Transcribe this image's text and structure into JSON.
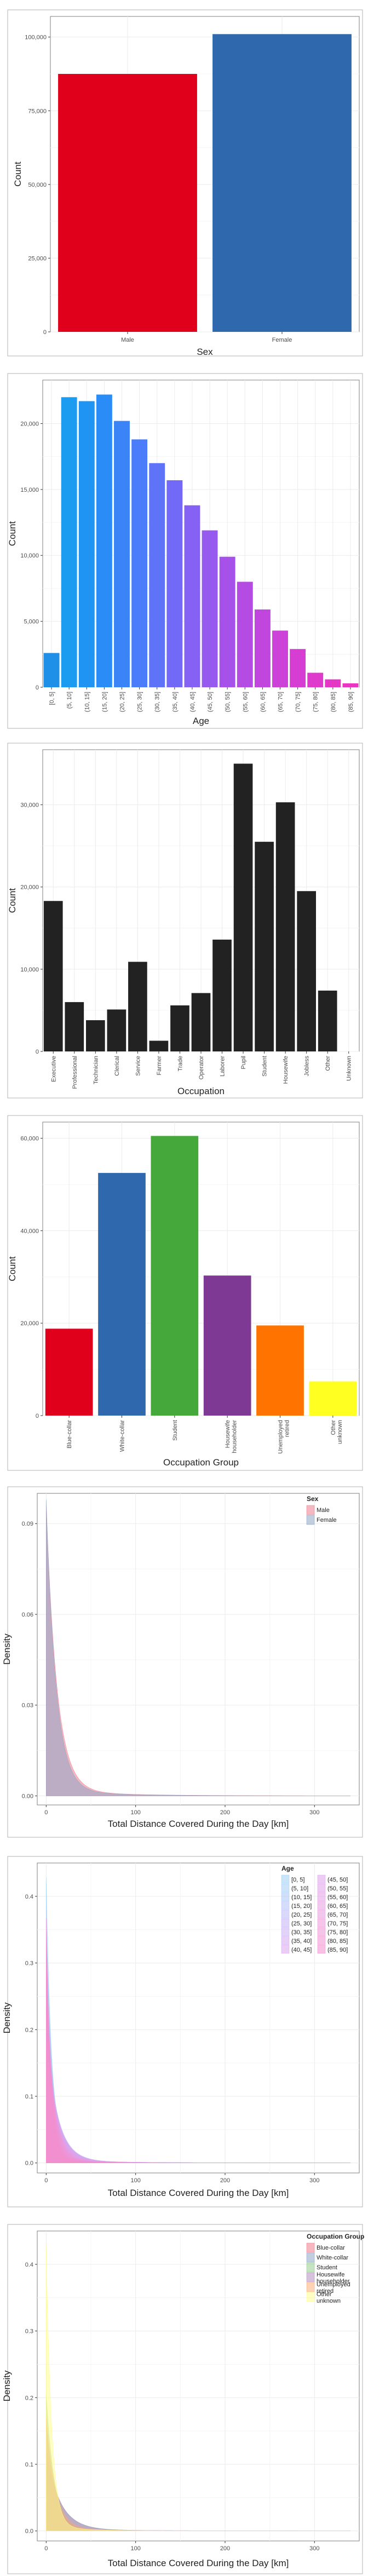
{
  "chart_data": [
    {
      "type": "bar",
      "xlabel": "Sex",
      "ylabel": "Count",
      "categories": [
        "Male",
        "Female"
      ],
      "values": [
        87500,
        101000
      ],
      "colors": [
        "#e0001b",
        "#2f68ad"
      ],
      "ylim": [
        0,
        107000
      ],
      "yticks": [
        0,
        25000,
        50000,
        75000,
        100000
      ],
      "ytick_labels": [
        "0",
        "25,000",
        "50,000",
        "75,000",
        "100,000"
      ],
      "xtick_rotation": 0,
      "grid": true
    },
    {
      "type": "bar",
      "xlabel": "Age",
      "ylabel": "Count",
      "categories": [
        "[0, 5]",
        "(5, 10]",
        "(10, 15]",
        "(15, 20]",
        "(20, 25]",
        "(25, 30]",
        "(30, 35]",
        "(35, 40]",
        "(40, 45]",
        "(45, 50]",
        "(50, 55]",
        "(55, 60]",
        "(60, 65]",
        "(65, 70]",
        "(70, 75]",
        "(75, 80]",
        "(80, 85]",
        "(85, 90]"
      ],
      "values": [
        2600,
        22000,
        21700,
        22200,
        20200,
        18800,
        17000,
        15700,
        13800,
        11900,
        9900,
        8000,
        5900,
        4300,
        2900,
        1100,
        600,
        300
      ],
      "colors": [
        "#1e90e8",
        "#1b9cf0",
        "#1f94f3",
        "#2a8cf6",
        "#3a84f8",
        "#4b7cf9",
        "#5f73f8",
        "#7269f6",
        "#8562f3",
        "#965aef",
        "#a652ea",
        "#b44ce4",
        "#c146de",
        "#cc41d8",
        "#d63dd2",
        "#de3acc",
        "#e537c6",
        "#ea35c0"
      ],
      "ylim": [
        0,
        23300
      ],
      "yticks": [
        0,
        5000,
        10000,
        15000,
        20000
      ],
      "ytick_labels": [
        "0",
        "5,000",
        "10,000",
        "15,000",
        "20,000"
      ],
      "xtick_rotation": -90,
      "grid": true
    },
    {
      "type": "bar",
      "xlabel": "Occupation",
      "ylabel": "Count",
      "categories": [
        "Executive",
        "Professional",
        "Technician",
        "Clerical",
        "Service",
        "Farmer",
        "Trade",
        "Operator",
        "Laborer",
        "Pupil",
        "Student",
        "Housewife",
        "Jobless",
        "Other",
        "Unknown"
      ],
      "values": [
        18300,
        6000,
        3800,
        5100,
        10900,
        1300,
        5600,
        7100,
        13600,
        35000,
        25500,
        30300,
        19500,
        7400,
        0
      ],
      "colors": [
        "#222222"
      ],
      "ylim": [
        0,
        36700
      ],
      "yticks": [
        0,
        10000,
        20000,
        30000
      ],
      "ytick_labels": [
        "0",
        "10,000",
        "20,000",
        "30,000"
      ],
      "xtick_rotation": -90,
      "grid": true
    },
    {
      "type": "bar",
      "xlabel": "Occupation Group",
      "ylabel": "Count",
      "categories": [
        "Blue-collar",
        "White-collar",
        "Student",
        "Housewife\nhouseholder",
        "Unemployed\nretired",
        "Other\nunknown"
      ],
      "values": [
        18800,
        52500,
        60500,
        30300,
        19500,
        7400
      ],
      "colors": [
        "#e0001b",
        "#2f68ad",
        "#44a83a",
        "#7e3994",
        "#ff7300",
        "#ffff21"
      ],
      "ylim": [
        0,
        63500
      ],
      "yticks": [
        0,
        20000,
        40000,
        60000
      ],
      "ytick_labels": [
        "0",
        "20,000",
        "40,000",
        "60,000"
      ],
      "xtick_rotation": -90,
      "grid": true
    },
    {
      "type": "area",
      "xlabel": "Total Distance Covered During the Day [km]",
      "ylabel": "Density",
      "xlim": [
        -10,
        350
      ],
      "ylim": [
        -0.003,
        0.1
      ],
      "xticks": [
        0,
        100,
        200,
        300
      ],
      "xtick_labels": [
        "0",
        "100",
        "200",
        "300"
      ],
      "yticks": [
        0,
        0.03,
        0.06,
        0.09
      ],
      "ytick_labels": [
        "0.00",
        "0.03",
        "0.06",
        "0.09"
      ],
      "legend_title": "Sex",
      "legend_position": "top-right",
      "legend_columns": 1,
      "series": [
        {
          "name": "Male",
          "color": "#f07b8c",
          "peak": 0.094,
          "decay": 12
        },
        {
          "name": "Female",
          "color": "#8ca6c6",
          "peak": 0.096,
          "decay": 11
        }
      ],
      "grid": true
    },
    {
      "type": "area",
      "xlabel": "Total Distance Covered During the Day [km]",
      "ylabel": "Density",
      "xlim": [
        -10,
        350
      ],
      "ylim": [
        -0.015,
        0.45
      ],
      "xticks": [
        0,
        100,
        200,
        300
      ],
      "xtick_labels": [
        "0",
        "100",
        "200",
        "300"
      ],
      "yticks": [
        0,
        0.1,
        0.2,
        0.3,
        0.4
      ],
      "ytick_labels": [
        "0.0",
        "0.1",
        "0.2",
        "0.3",
        "0.4"
      ],
      "legend_title": "Age",
      "legend_position": "top-right",
      "legend_columns": 2,
      "series": [
        {
          "name": "[0, 5]",
          "color": "#9fd0f3",
          "peak": 0.42,
          "decay": 6
        },
        {
          "name": "(5, 10]",
          "color": "#a2cdf6",
          "peak": 0.36,
          "decay": 7
        },
        {
          "name": "(10, 15]",
          "color": "#aac6f8",
          "peak": 0.3,
          "decay": 8
        },
        {
          "name": "(15, 20]",
          "color": "#b3c0f9",
          "peak": 0.24,
          "decay": 10
        },
        {
          "name": "(20, 25]",
          "color": "#bcb9f9",
          "peak": 0.2,
          "decay": 12
        },
        {
          "name": "(25, 30]",
          "color": "#c4b3f8",
          "peak": 0.18,
          "decay": 13
        },
        {
          "name": "(30, 35]",
          "color": "#cbaef6",
          "peak": 0.17,
          "decay": 13
        },
        {
          "name": "(35, 40]",
          "color": "#d1aaf3",
          "peak": 0.17,
          "decay": 13
        },
        {
          "name": "(40, 45]",
          "color": "#d8a6ef",
          "peak": 0.18,
          "decay": 12
        },
        {
          "name": "(45, 50]",
          "color": "#dca3ec",
          "peak": 0.19,
          "decay": 12
        },
        {
          "name": "(50, 55]",
          "color": "#e0a0e8",
          "peak": 0.2,
          "decay": 11
        },
        {
          "name": "(55, 60]",
          "color": "#e39ee4",
          "peak": 0.21,
          "decay": 10
        },
        {
          "name": "(60, 65]",
          "color": "#e69be0",
          "peak": 0.23,
          "decay": 9
        },
        {
          "name": "(65, 70]",
          "color": "#e999dc",
          "peak": 0.25,
          "decay": 8
        },
        {
          "name": "(70, 75]",
          "color": "#ec96d8",
          "peak": 0.27,
          "decay": 8
        },
        {
          "name": "(75, 80]",
          "color": "#ee93d4",
          "peak": 0.3,
          "decay": 7
        },
        {
          "name": "(80, 85]",
          "color": "#f090d0",
          "peak": 0.33,
          "decay": 6
        },
        {
          "name": "(85, 90]",
          "color": "#f28dcc",
          "peak": 0.36,
          "decay": 5
        }
      ],
      "grid": true
    },
    {
      "type": "area",
      "xlabel": "Total Distance Covered During the Day [km]",
      "ylabel": "Density",
      "xlim": [
        -10,
        350
      ],
      "ylim": [
        -0.015,
        0.45
      ],
      "xticks": [
        0,
        100,
        200,
        300
      ],
      "xtick_labels": [
        "0",
        "100",
        "200",
        "300"
      ],
      "yticks": [
        0,
        0.1,
        0.2,
        0.3,
        0.4
      ],
      "ytick_labels": [
        "0.0",
        "0.1",
        "0.2",
        "0.3",
        "0.4"
      ],
      "legend_title": "Occupation Group",
      "legend_position": "top-right",
      "legend_columns": 1,
      "series": [
        {
          "name": "Blue-collar",
          "color": "#f07b8c",
          "peak": 0.12,
          "decay": 15
        },
        {
          "name": "White-collar",
          "color": "#8ca6c6",
          "peak": 0.11,
          "decay": 16
        },
        {
          "name": "Student",
          "color": "#98cc90",
          "peak": 0.2,
          "decay": 9
        },
        {
          "name": "Housewife\nhouseholder",
          "color": "#b48fc0",
          "peak": 0.16,
          "decay": 10
        },
        {
          "name": "Unemployed\nretired",
          "color": "#ffae74",
          "peak": 0.17,
          "decay": 10
        },
        {
          "name": "Other\nunknown",
          "color": "#fefe90",
          "peak": 0.42,
          "decay": 6
        }
      ],
      "grid": true
    }
  ]
}
